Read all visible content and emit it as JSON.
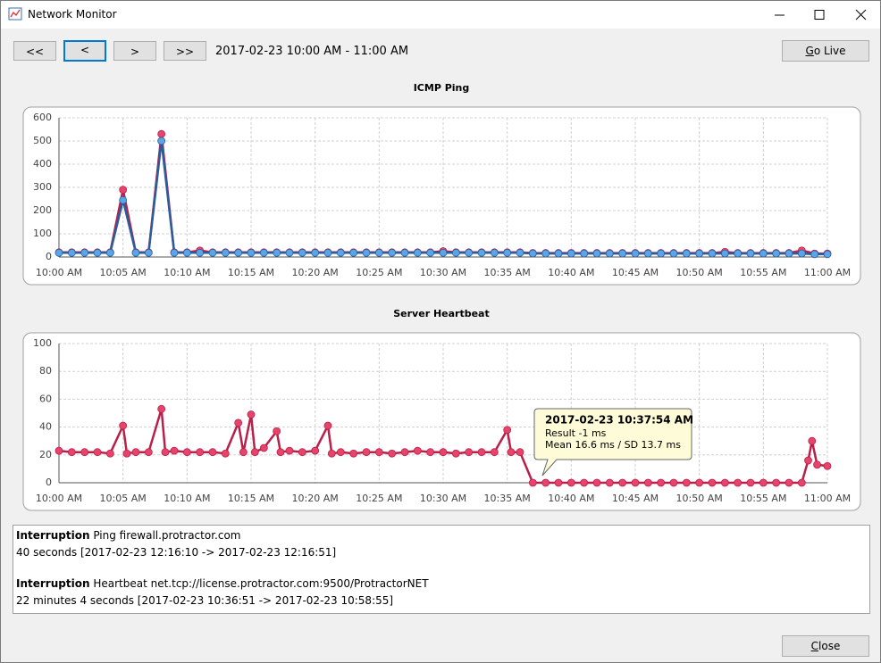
{
  "window": {
    "title": "Network Monitor"
  },
  "toolbar": {
    "buttons": [
      "<<",
      "<",
      ">",
      ">>"
    ],
    "range": "2017-02-23 10:00 AM - 11:00 AM",
    "go_live": "Go Live"
  },
  "chart_data": [
    {
      "type": "line",
      "title": "ICMP Ping",
      "x": [
        0,
        1,
        2,
        3,
        4,
        5,
        6,
        7,
        8,
        9,
        10,
        11,
        12,
        13,
        14,
        15,
        16,
        17,
        18,
        19,
        20,
        21,
        22,
        23,
        24,
        25,
        26,
        27,
        28,
        29,
        30,
        31,
        32,
        33,
        34,
        35,
        36,
        37,
        38,
        39,
        40,
        41,
        42,
        43,
        44,
        45,
        46,
        47,
        48,
        49,
        50,
        51,
        52,
        53,
        54,
        55,
        56,
        57,
        58,
        59,
        60
      ],
      "series": [
        {
          "color": "#e8436a",
          "values": [
            20,
            20,
            20,
            20,
            20,
            290,
            20,
            20,
            530,
            20,
            20,
            28,
            20,
            20,
            20,
            20,
            20,
            20,
            20,
            20,
            20,
            20,
            20,
            20,
            20,
            20,
            20,
            20,
            20,
            20,
            25,
            20,
            20,
            20,
            20,
            20,
            20,
            17,
            17,
            17,
            17,
            17,
            17,
            17,
            17,
            17,
            17,
            17,
            17,
            17,
            17,
            17,
            22,
            17,
            17,
            17,
            17,
            17,
            28,
            15,
            15
          ]
        },
        {
          "color": "#5aa5e8",
          "values": [
            18,
            18,
            18,
            18,
            18,
            245,
            18,
            18,
            500,
            18,
            18,
            18,
            18,
            18,
            18,
            18,
            18,
            18,
            18,
            18,
            18,
            18,
            18,
            18,
            18,
            18,
            18,
            18,
            18,
            18,
            18,
            18,
            18,
            18,
            18,
            18,
            18,
            15,
            15,
            15,
            15,
            15,
            15,
            15,
            15,
            15,
            15,
            15,
            15,
            15,
            15,
            15,
            15,
            15,
            15,
            15,
            15,
            15,
            15,
            12,
            12
          ]
        }
      ],
      "xlim": [
        0,
        60
      ],
      "xticks": [
        {
          "value": 0,
          "label": "10:00 AM"
        },
        {
          "value": 5,
          "label": "10:05 AM"
        },
        {
          "value": 10,
          "label": "10:10 AM"
        },
        {
          "value": 15,
          "label": "10:15 AM"
        },
        {
          "value": 20,
          "label": "10:20 AM"
        },
        {
          "value": 25,
          "label": "10:25 AM"
        },
        {
          "value": 30,
          "label": "10:30 AM"
        },
        {
          "value": 35,
          "label": "10:35 AM"
        },
        {
          "value": 40,
          "label": "10:40 AM"
        },
        {
          "value": 45,
          "label": "10:45 AM"
        },
        {
          "value": 50,
          "label": "10:50 AM"
        },
        {
          "value": 55,
          "label": "10:55 AM"
        },
        {
          "value": 60,
          "label": "11:00 AM"
        }
      ],
      "ylim": [
        0,
        600
      ],
      "yticks": [
        0,
        100,
        200,
        300,
        400,
        500,
        600
      ],
      "grid": true
    },
    {
      "type": "line",
      "title": "Server Heartbeat",
      "x": [
        0,
        1,
        2,
        3,
        4,
        5,
        5.3,
        6,
        7,
        8,
        8.3,
        9,
        10,
        11,
        12,
        13,
        14,
        14.4,
        15,
        15.3,
        16,
        17,
        17.3,
        18,
        19,
        20,
        21,
        21.3,
        22,
        23,
        24,
        25,
        26,
        27,
        28,
        29,
        30,
        31,
        32,
        33,
        34,
        35,
        35.3,
        36,
        37,
        38,
        39,
        40,
        41,
        42,
        43,
        44,
        45,
        46,
        47,
        48,
        49,
        50,
        51,
        52,
        53,
        54,
        55,
        56,
        57,
        58,
        58.5,
        58.8,
        59.2,
        60
      ],
      "series": [
        {
          "color": "#e8436a",
          "values": [
            23,
            22,
            22,
            22,
            21,
            41,
            21,
            22,
            22,
            53,
            22,
            23,
            22,
            22,
            22,
            21,
            43,
            22,
            49,
            22,
            25,
            37,
            22,
            23,
            22,
            23,
            41,
            21,
            22,
            21,
            22,
            22,
            21,
            22,
            23,
            22,
            22,
            21,
            22,
            22,
            22,
            38,
            22,
            22,
            0,
            0,
            0,
            0,
            0,
            0,
            0,
            0,
            0,
            0,
            0,
            0,
            0,
            0,
            0,
            0,
            0,
            0,
            0,
            0,
            0,
            0,
            16,
            30,
            13,
            12
          ]
        }
      ],
      "xlim": [
        0,
        60
      ],
      "xticks": [
        {
          "value": 0,
          "label": "10:00 AM"
        },
        {
          "value": 5,
          "label": "10:05 AM"
        },
        {
          "value": 10,
          "label": "10:10 AM"
        },
        {
          "value": 15,
          "label": "10:15 AM"
        },
        {
          "value": 20,
          "label": "10:20 AM"
        },
        {
          "value": 25,
          "label": "10:25 AM"
        },
        {
          "value": 30,
          "label": "10:30 AM"
        },
        {
          "value": 35,
          "label": "10:35 AM"
        },
        {
          "value": 40,
          "label": "10:40 AM"
        },
        {
          "value": 45,
          "label": "10:45 AM"
        },
        {
          "value": 50,
          "label": "10:50 AM"
        },
        {
          "value": 55,
          "label": "10:55 AM"
        },
        {
          "value": 60,
          "label": "11:00 AM"
        }
      ],
      "ylim": [
        0,
        100
      ],
      "yticks": [
        0,
        20,
        40,
        60,
        80,
        100
      ],
      "grid": true,
      "annotation": {
        "title": "2017-02-23 10:37:54 AM",
        "lines": [
          "Result -1 ms",
          "Mean 16.6 ms / SD 13.7 ms"
        ]
      }
    }
  ],
  "log": [
    {
      "kind": "Interruption",
      "target": "Ping firewall.protractor.com",
      "detail": "40 seconds [2017-02-23 12:16:10 -> 2017-02-23 12:16:51]"
    },
    {
      "kind": "Interruption",
      "target": "Heartbeat net.tcp://license.protractor.com:9500/ProtractorNET",
      "detail": "22 minutes 4 seconds [2017-02-23 10:36:51 -> 2017-02-23 10:58:55]"
    }
  ],
  "close": "Close"
}
